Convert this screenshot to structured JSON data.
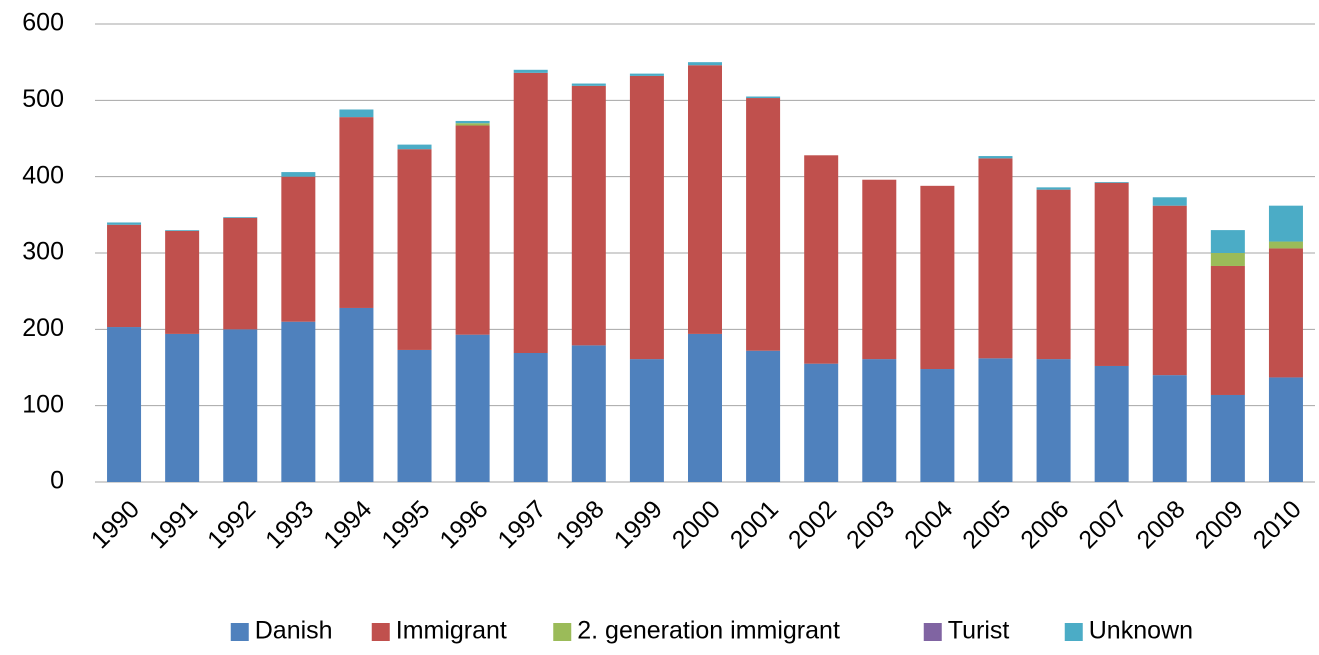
{
  "chart_data": {
    "type": "stacked_bar",
    "categories": [
      "1990",
      "1991",
      "1992",
      "1993",
      "1994",
      "1995",
      "1996",
      "1997",
      "1998",
      "1999",
      "2000",
      "2001",
      "2002",
      "2003",
      "2004",
      "2005",
      "2006",
      "2007",
      "2008",
      "2009",
      "2010"
    ],
    "series": [
      {
        "name": "Danish",
        "color": "#4f81bd",
        "values": [
          203,
          194,
          200,
          210,
          228,
          173,
          193,
          169,
          179,
          161,
          194,
          172,
          155,
          161,
          148,
          162,
          161,
          152,
          140,
          114,
          137
        ]
      },
      {
        "name": "Immigrant",
        "color": "#c0504d",
        "values": [
          134,
          135,
          146,
          190,
          250,
          263,
          274,
          367,
          340,
          371,
          352,
          331,
          273,
          235,
          240,
          262,
          222,
          240,
          222,
          169,
          169
        ]
      },
      {
        "name": "2. generation immigrant",
        "color": "#9bbb59",
        "values": [
          0,
          0,
          0,
          0,
          0,
          0,
          3,
          0,
          0,
          0,
          0,
          0,
          0,
          0,
          0,
          0,
          0,
          0,
          0,
          17,
          9
        ]
      },
      {
        "name": "Turist",
        "color": "#8064a2",
        "values": [
          0,
          0,
          0,
          0,
          0,
          0,
          0,
          0,
          0,
          0,
          0,
          0,
          0,
          0,
          0,
          0,
          0,
          0,
          0,
          0,
          0
        ]
      },
      {
        "name": "Unknown",
        "color": "#4bacc6",
        "values": [
          3,
          1,
          1,
          6,
          10,
          6,
          3,
          4,
          3,
          3,
          4,
          2,
          0,
          0,
          0,
          3,
          3,
          1,
          11,
          30,
          47
        ]
      }
    ],
    "ylim": [
      0,
      600
    ],
    "yticks": [
      0,
      100,
      200,
      300,
      400,
      500,
      600
    ],
    "grid": true,
    "legend": "bottom"
  }
}
